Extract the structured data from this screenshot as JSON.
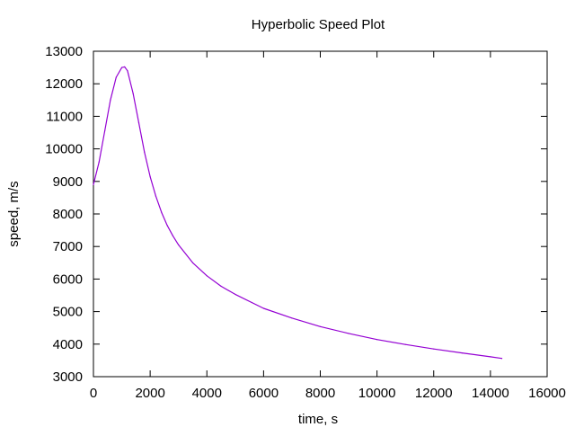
{
  "chart_data": {
    "type": "line",
    "title": "Hyperbolic Speed Plot",
    "xlabel": "time, s",
    "ylabel": "speed, m/s",
    "xlim": [
      0,
      16000
    ],
    "ylim": [
      3000,
      13000
    ],
    "x_ticks": [
      0,
      2000,
      4000,
      6000,
      8000,
      10000,
      12000,
      14000,
      16000
    ],
    "y_ticks": [
      3000,
      4000,
      5000,
      6000,
      7000,
      8000,
      9000,
      10000,
      11000,
      12000,
      13000
    ],
    "grid": false,
    "legend": "none",
    "line_color": "#9400d3",
    "series": [
      {
        "x": [
          0,
          200,
          400,
          600,
          800,
          1000,
          1100,
          1200,
          1400,
          1600,
          1800,
          2000,
          2200,
          2400,
          2600,
          2800,
          3000,
          3500,
          4000,
          4500,
          5000,
          6000,
          7000,
          8000,
          9000,
          10000,
          11000,
          12000,
          13000,
          14000,
          14400
        ],
        "y": [
          8900,
          9600,
          10550,
          11500,
          12200,
          12500,
          12520,
          12400,
          11700,
          10800,
          9900,
          9150,
          8550,
          8050,
          7650,
          7330,
          7050,
          6500,
          6100,
          5780,
          5530,
          5100,
          4800,
          4540,
          4330,
          4140,
          3990,
          3850,
          3730,
          3610,
          3560
        ]
      }
    ]
  }
}
